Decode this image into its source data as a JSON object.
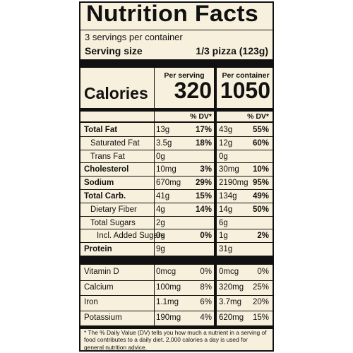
{
  "title": "Nutrition Facts",
  "servings_per_container": "3 servings per container",
  "serving_size_label": "Serving size",
  "serving_size_value": "1/3 pizza (123g)",
  "columns": {
    "per_serving": "Per serving",
    "per_container": "Per container"
  },
  "calories": {
    "label": "Calories",
    "per_serving": "320",
    "per_container": "1050"
  },
  "dv_header": "% DV*",
  "nutrients": [
    {
      "name": "Total Fat",
      "bold": true,
      "indent": 0,
      "serving_amount": "13g",
      "serving_dv": "17%",
      "container_amount": "43g",
      "container_dv": "55%"
    },
    {
      "name": "Saturated Fat",
      "bold": false,
      "indent": 1,
      "serving_amount": "3.5g",
      "serving_dv": "18%",
      "container_amount": "12g",
      "container_dv": "60%"
    },
    {
      "name": "Trans Fat",
      "bold": false,
      "indent": 1,
      "serving_amount": "0g",
      "serving_dv": "",
      "container_amount": "0g",
      "container_dv": ""
    },
    {
      "name": "Cholesterol",
      "bold": true,
      "indent": 0,
      "serving_amount": "10mg",
      "serving_dv": "3%",
      "container_amount": "30mg",
      "container_dv": "10%"
    },
    {
      "name": "Sodium",
      "bold": true,
      "indent": 0,
      "serving_amount": "670mg",
      "serving_dv": "29%",
      "container_amount": "2190mg",
      "container_dv": "95%"
    },
    {
      "name": "Total Carb.",
      "bold": true,
      "indent": 0,
      "serving_amount": "41g",
      "serving_dv": "15%",
      "container_amount": "134g",
      "container_dv": "49%"
    },
    {
      "name": "Dietary Fiber",
      "bold": false,
      "indent": 1,
      "serving_amount": "4g",
      "serving_dv": "14%",
      "container_amount": "14g",
      "container_dv": "50%"
    },
    {
      "name": "Total Sugars",
      "bold": false,
      "indent": 1,
      "serving_amount": "2g",
      "serving_dv": "",
      "container_amount": "6g",
      "container_dv": ""
    },
    {
      "name": "Incl. Added Sugars",
      "bold": false,
      "indent": 2,
      "serving_amount": "0g",
      "serving_dv": "0%",
      "container_amount": "1g",
      "container_dv": "2%"
    },
    {
      "name": "Protein",
      "bold": true,
      "indent": 0,
      "serving_amount": "9g",
      "serving_dv": "",
      "container_amount": "31g",
      "container_dv": ""
    }
  ],
  "vitamins": [
    {
      "name": "Vitamin D",
      "serving_amount": "0mcg",
      "serving_dv": "0%",
      "container_amount": "0mcg",
      "container_dv": "0%"
    },
    {
      "name": "Calcium",
      "serving_amount": "100mg",
      "serving_dv": "8%",
      "container_amount": "320mg",
      "container_dv": "25%"
    },
    {
      "name": "Iron",
      "serving_amount": "1.1mg",
      "serving_dv": "6%",
      "container_amount": "3.7mg",
      "container_dv": "20%"
    },
    {
      "name": "Potassium",
      "serving_amount": "190mg",
      "serving_dv": "4%",
      "container_amount": "620mg",
      "container_dv": "15%"
    }
  ],
  "footnote": "* The % Daily Value (DV) tells you how much a nutrient in a serving of food contributes to a daily diet. 2,000 calories a day is used for general nutrition advice."
}
